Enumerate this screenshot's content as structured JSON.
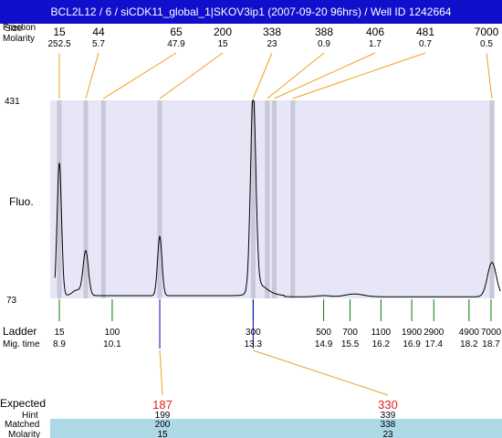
{
  "title": "BCL2L12 / 6 / siCDK11_global_1|SKOV3ip1 (2007-09-20 96hrs) / Well ID 1242664",
  "labels": {
    "fraction": "Fraction",
    "size": "Size",
    "molarity_top": "Molarity",
    "fluo": "Fluo.",
    "ladder": "Ladder",
    "mig_time": "Mig. time",
    "expected": "Expected",
    "hint": "Hint",
    "matched": "Matched",
    "molarity_bottom": "Molarity"
  },
  "colors": {
    "title_bg": "#1010cc",
    "plot_bg": "#e6e6f7",
    "band": "#c8c8d8",
    "leader": "#f0a020",
    "ladder_tick": "#008000",
    "expected_text": "#e02020",
    "matched_bg": "#add8e6",
    "marker": "#0000c0"
  },
  "chart_data": {
    "type": "line",
    "ylim": [
      73,
      431
    ],
    "y_ticks": [
      "431",
      "73"
    ],
    "top_peaks": [
      {
        "size": "15",
        "molarity": "252.5"
      },
      {
        "size": "44",
        "molarity": "5.7"
      },
      {
        "size": "65",
        "molarity": "47.9"
      },
      {
        "size": "200",
        "molarity": "15"
      },
      {
        "size": "338",
        "molarity": "23"
      },
      {
        "size": "388",
        "molarity": "0.9"
      },
      {
        "size": "406",
        "molarity": "1.7"
      },
      {
        "size": "481",
        "molarity": "0.7"
      },
      {
        "size": "7000",
        "molarity": "0.5"
      }
    ],
    "ladder": [
      {
        "size": "15",
        "time": "8.9"
      },
      {
        "size": "100",
        "time": "10.1"
      },
      {
        "size": "300",
        "time": "13.3"
      },
      {
        "size": "500",
        "time": "14.9"
      },
      {
        "size": "700",
        "time": "15.5"
      },
      {
        "size": "1100",
        "time": "16.2"
      },
      {
        "size": "1900",
        "time": "16.9"
      },
      {
        "size": "2900",
        "time": "17.4"
      },
      {
        "size": "4900",
        "time": "18.2"
      },
      {
        "size": "7000",
        "time": "18.7"
      }
    ],
    "expected": [
      {
        "expected": "187",
        "hint": "199",
        "matched": "200",
        "molarity": "15"
      },
      {
        "expected": "330",
        "hint": "339",
        "matched": "338",
        "molarity": "23"
      }
    ],
    "trace": {
      "baseline": 78,
      "peaks": [
        {
          "time": 8.9,
          "height": 318,
          "width": 0.05
        },
        {
          "time": 9.3,
          "height": 88,
          "width": 0.1
        },
        {
          "time": 9.5,
          "height": 158,
          "width": 0.06
        },
        {
          "time": 11.18,
          "height": 185,
          "width": 0.05
        },
        {
          "time": 13.3,
          "height": 431,
          "width": 0.06
        },
        {
          "time": 13.4,
          "height": 92,
          "width": 0.15
        },
        {
          "time": 13.55,
          "height": 85,
          "width": 0.2
        },
        {
          "time": 14.9,
          "height": 80,
          "width": 0.15
        },
        {
          "time": 15.6,
          "height": 83,
          "width": 0.2
        },
        {
          "time": 18.72,
          "height": 140,
          "width": 0.1
        }
      ]
    }
  }
}
